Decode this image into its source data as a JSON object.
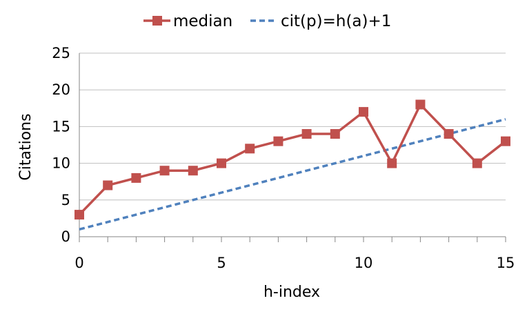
{
  "chart_data": {
    "type": "line",
    "title": "",
    "xlabel": "h-index",
    "ylabel": "Citations",
    "xlim": [
      0,
      15
    ],
    "ylim": [
      0,
      25
    ],
    "x_ticks": [
      "0",
      "5",
      "10",
      "15"
    ],
    "y_ticks": [
      "0",
      "5",
      "10",
      "15",
      "20",
      "25"
    ],
    "x_minor_tick_step": 1,
    "grid": "horizontal",
    "legend_position": "top",
    "series": [
      {
        "name": "median",
        "style": "solid-square-markers",
        "color": "#c0504d",
        "x": [
          0,
          1,
          2,
          3,
          4,
          5,
          6,
          7,
          8,
          9,
          10,
          11,
          12,
          13,
          14,
          15
        ],
        "values": [
          3,
          7,
          8,
          9,
          9,
          10,
          12,
          13,
          14,
          14,
          17,
          10,
          18,
          14,
          10,
          13
        ]
      },
      {
        "name": "cit(p)=h(a)+1",
        "style": "dashed",
        "color": "#4f81bd",
        "x": [
          0,
          15
        ],
        "values": [
          1,
          16
        ]
      }
    ]
  }
}
